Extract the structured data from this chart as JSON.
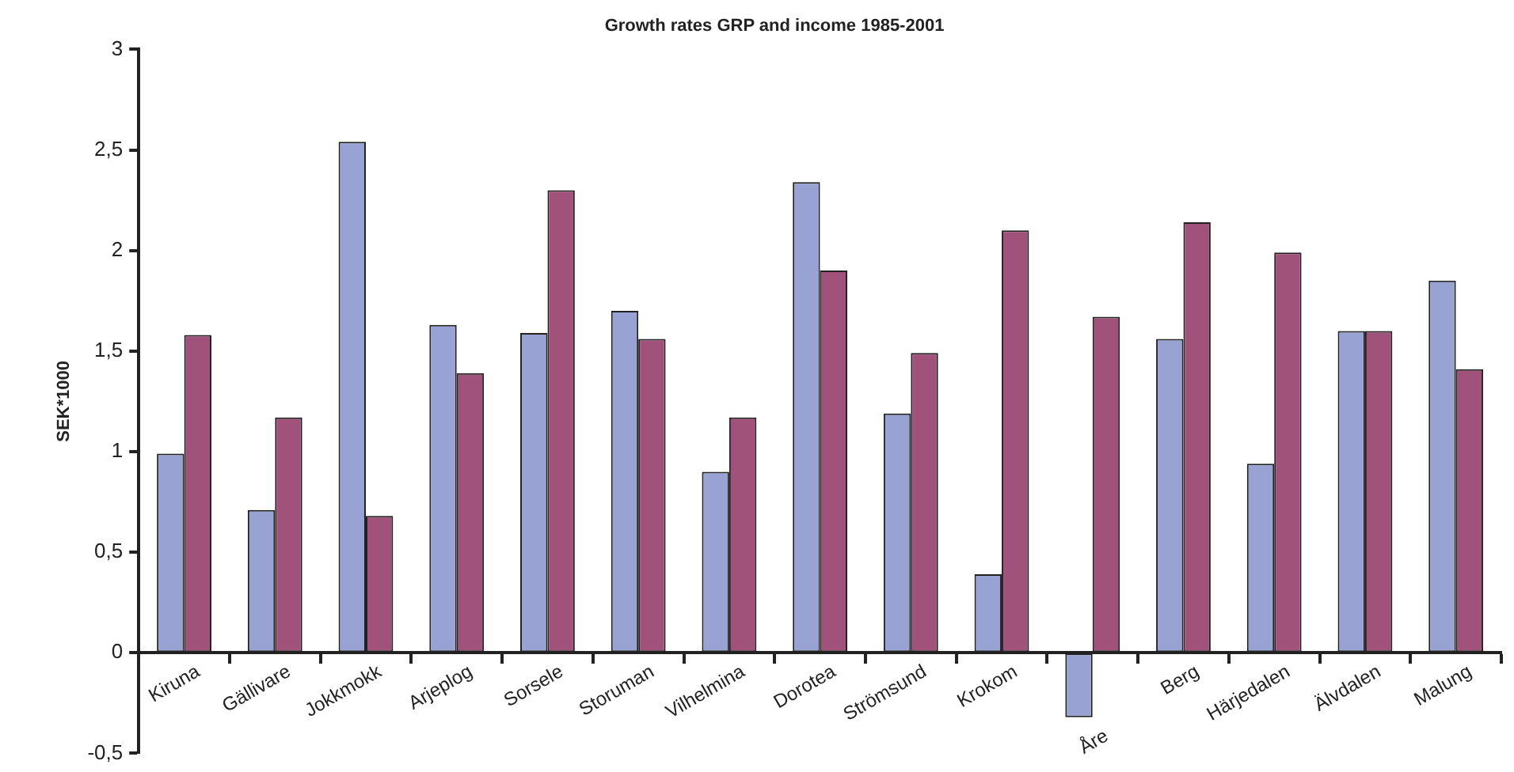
{
  "chart_data": {
    "type": "bar",
    "title": "Growth rates GRP and income 1985-2001",
    "ylabel": "SEK*1000",
    "categories": [
      "Kiruna",
      "Gällivare",
      "Jokkmokk",
      "Arjeplog",
      "Sorsele",
      "Storuman",
      "Vilhelmina",
      "Dorotea",
      "Strömsund",
      "Krokom",
      "Åre",
      "Berg",
      "Härjedalen",
      "Älvdalen",
      "Malung"
    ],
    "series": [
      {
        "color": "#99a3d3",
        "values": [
          0.99,
          0.71,
          2.54,
          1.63,
          1.59,
          1.7,
          0.9,
          2.34,
          1.19,
          0.39,
          -0.32,
          1.56,
          0.94,
          1.6,
          1.85
        ]
      },
      {
        "color": "#a0527a",
        "values": [
          1.58,
          1.17,
          0.68,
          1.39,
          2.3,
          1.56,
          1.17,
          1.9,
          1.49,
          2.1,
          1.67,
          2.14,
          1.99,
          1.6,
          1.41
        ]
      }
    ],
    "ylim": [
      -0.5,
      3
    ],
    "yticks": [
      {
        "value": -0.5,
        "label": "-0,5"
      },
      0,
      {
        "value": 0.5,
        "label": "0,5"
      },
      1,
      {
        "value": 1.5,
        "label": "1,5"
      },
      2,
      {
        "value": 2.5,
        "label": "2,5"
      },
      3
    ],
    "grid": false,
    "legend": false
  }
}
